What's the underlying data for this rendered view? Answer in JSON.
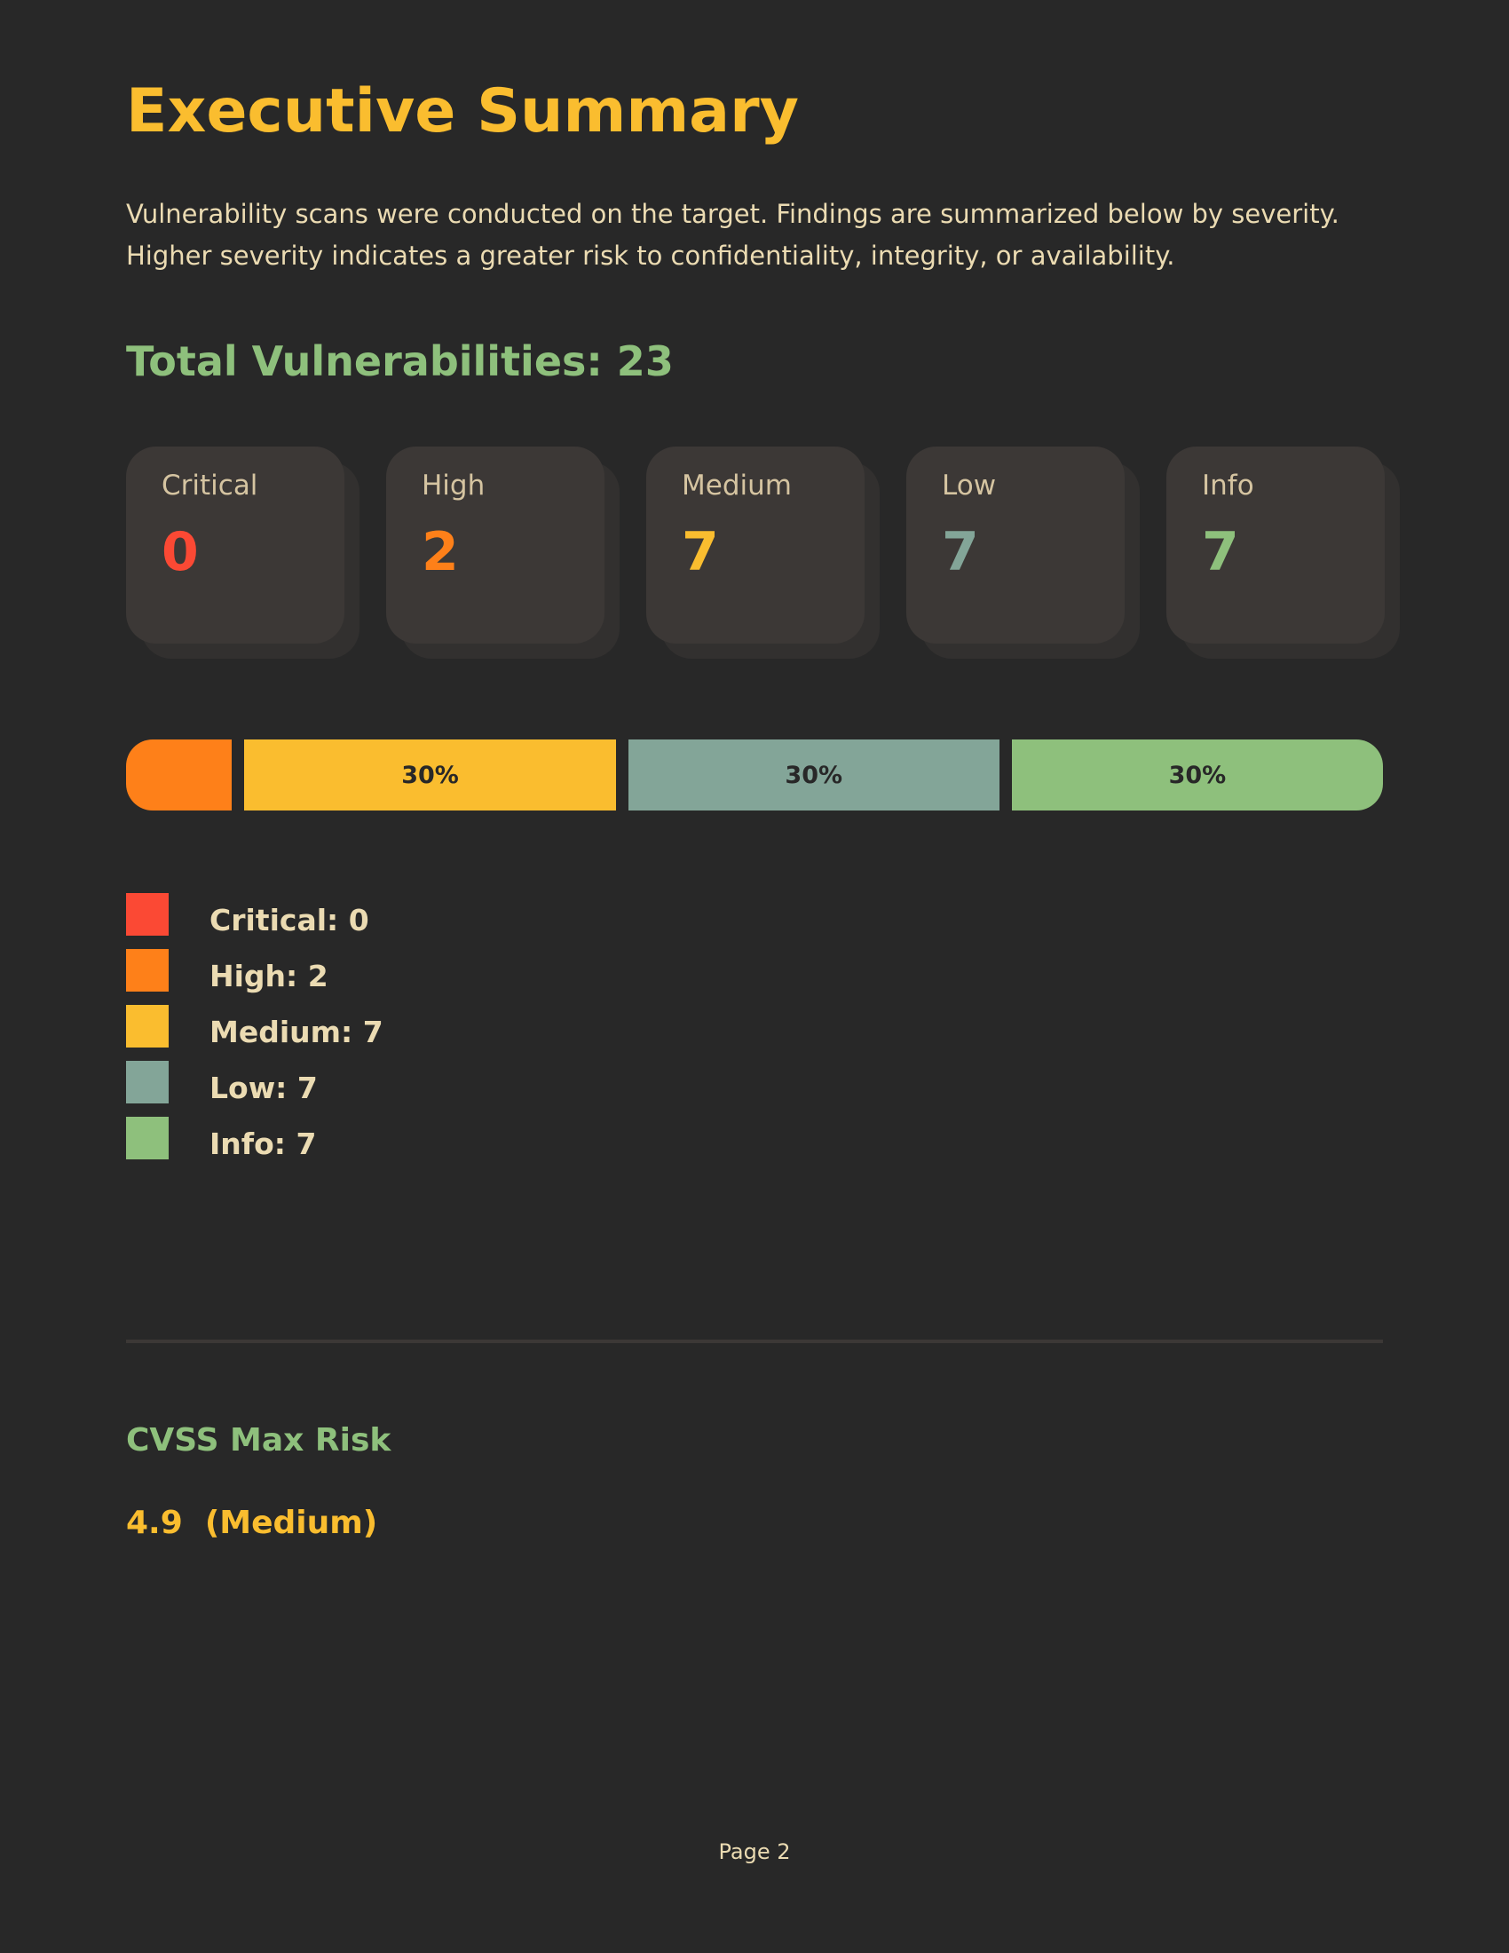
{
  "header": {
    "title": "Executive Summary",
    "intro": "Vulnerability scans were conducted on the target. Findings are summarized below by severity. Higher severity indicates a greater risk to confidentiality, integrity, or availability."
  },
  "total": {
    "label": "Total Vulnerabilities: 23",
    "count": 23
  },
  "severities": [
    {
      "name": "Critical",
      "count": 0,
      "color": "#fb4934",
      "legend": "Critical: 0"
    },
    {
      "name": "High",
      "count": 2,
      "color": "#fe8019",
      "legend": "High: 2"
    },
    {
      "name": "Medium",
      "count": 7,
      "color": "#fabd2f",
      "legend": "Medium: 7",
      "bar_label": "30%"
    },
    {
      "name": "Low",
      "count": 7,
      "color": "#83a598",
      "legend": "Low: 7",
      "bar_label": "30%"
    },
    {
      "name": "Info",
      "count": 7,
      "color": "#8ec07c",
      "legend": "Info: 7",
      "bar_label": "30%"
    }
  ],
  "cvss": {
    "heading": "CVSS Max Risk",
    "value": "4.9  (Medium)"
  },
  "footer": {
    "page": "Page 2"
  }
}
